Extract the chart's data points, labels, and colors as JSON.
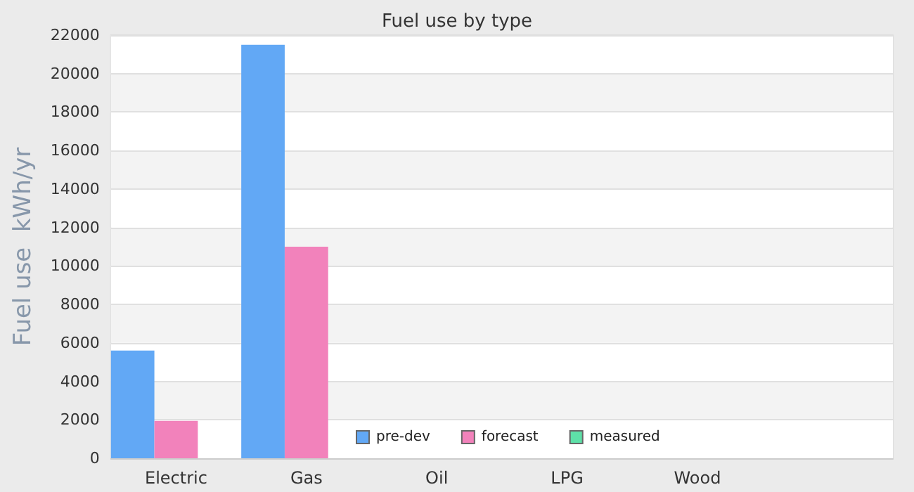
{
  "chart_data": {
    "type": "bar",
    "title": "Fuel use by type",
    "ylabel": "Fuel use  kWh/yr",
    "categories": [
      "Electric",
      "Gas",
      "Oil",
      "LPG",
      "Wood",
      null
    ],
    "series": [
      {
        "name": "pre-dev",
        "color": "#62a8f5",
        "values": [
          5600,
          21500,
          0,
          0,
          0,
          null
        ]
      },
      {
        "name": "forecast",
        "color": "#f282bb",
        "values": [
          1950,
          11000,
          0,
          0,
          0,
          null
        ]
      },
      {
        "name": "measured",
        "color": "#5ee0a8",
        "values": [
          null,
          null,
          null,
          null,
          null,
          null
        ]
      }
    ],
    "ylim": [
      0,
      22000
    ],
    "yticks": [
      0,
      2000,
      4000,
      6000,
      8000,
      10000,
      12000,
      14000,
      16000,
      18000,
      20000,
      22000
    ],
    "grid": "y",
    "legend": "bottom"
  }
}
